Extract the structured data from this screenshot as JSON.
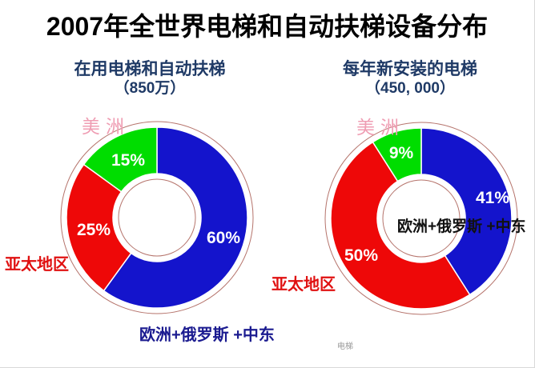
{
  "slide": {
    "title": "2007年全世界电梯和自动扶梯设备分布",
    "watermark": "电梯"
  },
  "colors": {
    "slice_blue": "#1414cc",
    "slice_red": "#ee0808",
    "slice_green": "#00dd00",
    "subtitle_navy": "#1f3a66",
    "americas_label_pink": "#ef9db3",
    "apac_label_red": "#e01010",
    "europe_label_navy": "#1b1b90",
    "europe_label_black": "#111111",
    "ring_outline": "#b5736b",
    "slice_value_text": "#ffffff"
  },
  "chart_data": [
    {
      "type": "pie",
      "variant": "donut",
      "title": "在用电梯和自动扶梯",
      "subtitle": "（850万）",
      "categories": [
        "欧洲+俄罗斯 +中东",
        "亚太地区",
        "美洲"
      ],
      "values": [
        60,
        25,
        15
      ],
      "unit": "%",
      "slice_labels": [
        "60%",
        "25%",
        "15%"
      ],
      "colors": [
        "#1414cc",
        "#ee0808",
        "#00dd00"
      ],
      "start_angle": "12-oclock",
      "direction": "clockwise",
      "legend": "none"
    },
    {
      "type": "pie",
      "variant": "donut",
      "title": "每年新安装的电梯",
      "subtitle": "（450, 000）",
      "categories": [
        "欧洲+俄罗斯 +中东",
        "亚太地区",
        "美洲"
      ],
      "values": [
        41,
        50,
        9
      ],
      "unit": "%",
      "slice_labels": [
        "41%",
        "50%",
        "9%"
      ],
      "colors": [
        "#1414cc",
        "#ee0808",
        "#00dd00"
      ],
      "start_angle": "12-oclock",
      "direction": "clockwise",
      "legend": "none"
    }
  ]
}
